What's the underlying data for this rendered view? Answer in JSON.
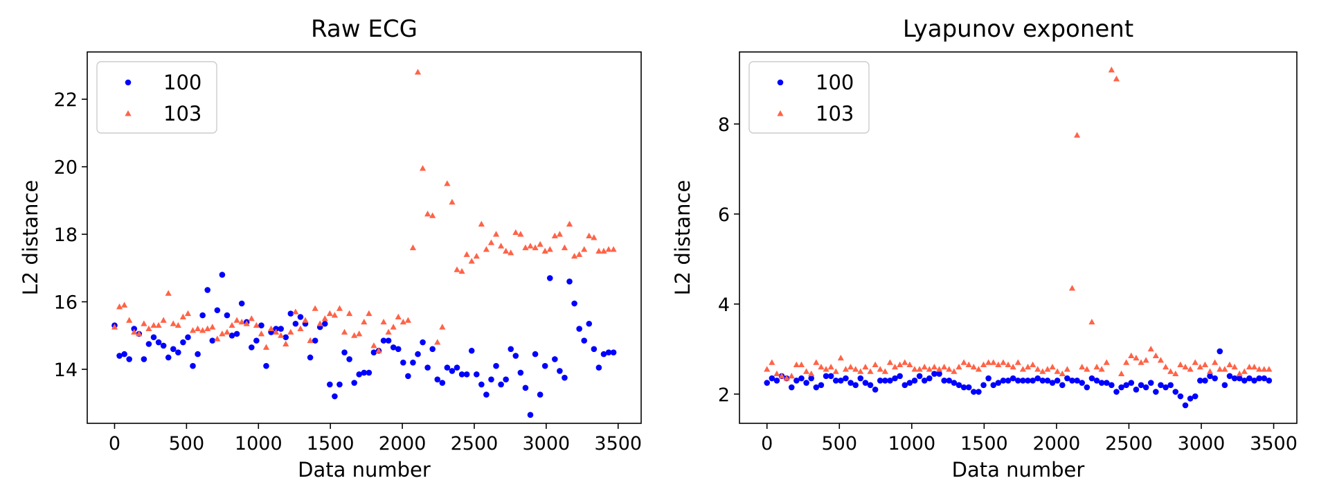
{
  "chart_data": [
    {
      "type": "scatter",
      "title": "Raw ECG",
      "xlabel": "Data number",
      "ylabel": "L2 distance",
      "xlim": [
        -190,
        3660
      ],
      "ylim": [
        12.4,
        23.4
      ],
      "xticks": [
        0,
        500,
        1000,
        1500,
        2000,
        2500,
        3000,
        3500
      ],
      "yticks": [
        14,
        16,
        18,
        20,
        22
      ],
      "grid": false,
      "legend_position": "top-left",
      "series": [
        {
          "name": "100",
          "marker": "circle",
          "color": "#0000ff",
          "x": [
            0,
            34,
            68,
            102,
            136,
            170,
            204,
            238,
            272,
            306,
            340,
            374,
            408,
            442,
            476,
            510,
            544,
            578,
            612,
            646,
            680,
            714,
            748,
            782,
            816,
            850,
            884,
            918,
            952,
            986,
            1020,
            1054,
            1088,
            1122,
            1156,
            1190,
            1224,
            1258,
            1292,
            1326,
            1360,
            1394,
            1428,
            1462,
            1496,
            1530,
            1564,
            1598,
            1632,
            1666,
            1700,
            1734,
            1768,
            1802,
            1836,
            1870,
            1904,
            1938,
            1972,
            2006,
            2040,
            2074,
            2108,
            2142,
            2176,
            2210,
            2244,
            2278,
            2312,
            2346,
            2380,
            2414,
            2448,
            2482,
            2516,
            2550,
            2584,
            2618,
            2652,
            2686,
            2720,
            2754,
            2788,
            2822,
            2856,
            2890,
            2924,
            2958,
            2992,
            3026,
            3060,
            3094,
            3128,
            3162,
            3196,
            3230,
            3264,
            3298,
            3332,
            3366,
            3400,
            3434,
            3468
          ],
          "y": [
            15.3,
            14.4,
            14.45,
            14.3,
            15.2,
            15.05,
            14.3,
            14.75,
            14.95,
            14.8,
            14.7,
            14.35,
            14.6,
            14.5,
            14.8,
            14.95,
            14.1,
            14.45,
            15.6,
            16.35,
            14.85,
            15.75,
            16.8,
            15.6,
            15.0,
            15.05,
            15.95,
            15.4,
            14.65,
            14.85,
            15.3,
            14.1,
            15.1,
            15.2,
            15.2,
            14.95,
            15.65,
            15.35,
            15.55,
            15.35,
            14.35,
            14.85,
            15.25,
            15.35,
            13.55,
            13.2,
            13.55,
            14.5,
            14.3,
            13.6,
            13.85,
            13.9,
            13.9,
            14.5,
            14.55,
            14.85,
            14.85,
            14.65,
            14.6,
            14.2,
            13.8,
            14.2,
            14.45,
            14.8,
            14.05,
            14.6,
            13.7,
            13.6,
            14.05,
            13.95,
            14.05,
            13.85,
            13.85,
            14.55,
            13.85,
            13.55,
            13.25,
            13.7,
            14.1,
            13.55,
            13.7,
            14.6,
            14.4,
            13.9,
            13.45,
            12.65,
            14.45,
            13.25,
            14.1,
            16.7,
            14.3,
            13.95,
            13.75,
            16.6,
            15.95,
            15.2,
            14.85,
            15.35,
            14.6,
            14.05,
            14.45,
            14.5,
            14.5
          ]
        },
        {
          "name": "103",
          "marker": "triangle",
          "color": "#ff6347",
          "x": [
            0,
            34,
            68,
            102,
            136,
            170,
            204,
            238,
            272,
            306,
            340,
            374,
            408,
            442,
            476,
            510,
            544,
            578,
            612,
            646,
            680,
            714,
            748,
            782,
            816,
            850,
            884,
            918,
            952,
            986,
            1020,
            1054,
            1088,
            1122,
            1156,
            1190,
            1224,
            1258,
            1292,
            1326,
            1360,
            1394,
            1428,
            1462,
            1496,
            1530,
            1564,
            1598,
            1632,
            1666,
            1700,
            1734,
            1768,
            1802,
            1836,
            1870,
            1904,
            1938,
            1972,
            2006,
            2040,
            2074,
            2108,
            2142,
            2176,
            2210,
            2244,
            2278,
            2312,
            2346,
            2380,
            2414,
            2448,
            2482,
            2516,
            2550,
            2584,
            2618,
            2652,
            2686,
            2720,
            2754,
            2788,
            2822,
            2856,
            2890,
            2924,
            2958,
            2992,
            3026,
            3060,
            3094,
            3128,
            3162,
            3196,
            3230,
            3264,
            3298,
            3332,
            3366,
            3400,
            3434,
            3468
          ],
          "y": [
            15.25,
            15.85,
            15.9,
            15.45,
            15.1,
            15.05,
            15.35,
            15.2,
            15.3,
            15.3,
            15.45,
            16.25,
            15.35,
            15.3,
            15.55,
            15.65,
            15.15,
            15.2,
            15.15,
            15.2,
            15.25,
            14.9,
            15.05,
            15.1,
            15.3,
            15.45,
            15.4,
            15.35,
            15.5,
            15.3,
            15.05,
            14.65,
            15.2,
            15.1,
            15.0,
            14.75,
            15.1,
            15.7,
            15.2,
            15.45,
            14.85,
            15.8,
            15.35,
            15.5,
            15.65,
            15.6,
            15.8,
            15.1,
            15.65,
            15.0,
            15.05,
            15.4,
            15.65,
            14.7,
            14.55,
            15.4,
            15.1,
            15.25,
            15.55,
            15.4,
            15.45,
            17.6,
            22.8,
            19.95,
            18.6,
            18.55,
            14.8,
            15.25,
            19.5,
            18.95,
            16.95,
            16.9,
            17.4,
            17.2,
            17.35,
            18.3,
            17.55,
            17.75,
            18.0,
            17.65,
            17.5,
            17.45,
            18.05,
            18.0,
            17.6,
            17.65,
            17.6,
            17.7,
            17.5,
            17.55,
            17.95,
            18.0,
            17.6,
            18.3,
            17.35,
            17.4,
            17.55,
            17.95,
            17.9,
            17.5,
            17.5,
            17.55,
            17.55
          ]
        }
      ]
    },
    {
      "type": "scatter",
      "title": "Lyapunov exponent",
      "xlabel": "Data number",
      "ylabel": "L2 distance",
      "xlim": [
        -190,
        3660
      ],
      "ylim": [
        1.35,
        9.6
      ],
      "xticks": [
        0,
        500,
        1000,
        1500,
        2000,
        2500,
        3000,
        3500
      ],
      "yticks": [
        2,
        4,
        6,
        8
      ],
      "grid": false,
      "legend_position": "top-left",
      "series": [
        {
          "name": "100",
          "marker": "circle",
          "color": "#0000ff",
          "x": [
            0,
            34,
            68,
            102,
            136,
            170,
            204,
            238,
            272,
            306,
            340,
            374,
            408,
            442,
            476,
            510,
            544,
            578,
            612,
            646,
            680,
            714,
            748,
            782,
            816,
            850,
            884,
            918,
            952,
            986,
            1020,
            1054,
            1088,
            1122,
            1156,
            1190,
            1224,
            1258,
            1292,
            1326,
            1360,
            1394,
            1428,
            1462,
            1496,
            1530,
            1564,
            1598,
            1632,
            1666,
            1700,
            1734,
            1768,
            1802,
            1836,
            1870,
            1904,
            1938,
            1972,
            2006,
            2040,
            2074,
            2108,
            2142,
            2176,
            2210,
            2244,
            2278,
            2312,
            2346,
            2380,
            2414,
            2448,
            2482,
            2516,
            2550,
            2584,
            2618,
            2652,
            2686,
            2720,
            2754,
            2788,
            2822,
            2856,
            2890,
            2924,
            2958,
            2992,
            3026,
            3060,
            3094,
            3128,
            3162,
            3196,
            3230,
            3264,
            3298,
            3332,
            3366,
            3400,
            3434,
            3468
          ],
          "y": [
            2.25,
            2.35,
            2.3,
            2.4,
            2.35,
            2.15,
            2.3,
            2.35,
            2.25,
            2.35,
            2.15,
            2.2,
            2.4,
            2.4,
            2.3,
            2.3,
            2.35,
            2.25,
            2.2,
            2.35,
            2.25,
            2.2,
            2.1,
            2.3,
            2.3,
            2.3,
            2.35,
            2.4,
            2.2,
            2.25,
            2.3,
            2.4,
            2.3,
            2.35,
            2.45,
            2.45,
            2.3,
            2.3,
            2.25,
            2.2,
            2.15,
            2.15,
            2.05,
            2.05,
            2.2,
            2.35,
            2.2,
            2.25,
            2.3,
            2.3,
            2.35,
            2.3,
            2.3,
            2.3,
            2.3,
            2.35,
            2.3,
            2.3,
            2.25,
            2.3,
            2.2,
            2.35,
            2.3,
            2.3,
            2.25,
            2.15,
            2.35,
            2.3,
            2.25,
            2.25,
            2.2,
            2.05,
            2.15,
            2.2,
            2.25,
            2.1,
            2.2,
            2.15,
            2.25,
            2.05,
            2.2,
            2.15,
            2.2,
            2.05,
            1.95,
            1.75,
            1.9,
            1.95,
            2.3,
            2.3,
            2.4,
            2.35,
            2.95,
            2.2,
            2.4,
            2.35,
            2.35,
            2.3,
            2.35,
            2.3,
            2.35,
            2.35,
            2.3
          ]
        },
        {
          "name": "103",
          "marker": "triangle",
          "color": "#ff6347",
          "x": [
            0,
            34,
            68,
            102,
            136,
            170,
            204,
            238,
            272,
            306,
            340,
            374,
            408,
            442,
            476,
            510,
            544,
            578,
            612,
            646,
            680,
            714,
            748,
            782,
            816,
            850,
            884,
            918,
            952,
            986,
            1020,
            1054,
            1088,
            1122,
            1156,
            1190,
            1224,
            1258,
            1292,
            1326,
            1360,
            1394,
            1428,
            1462,
            1496,
            1530,
            1564,
            1598,
            1632,
            1666,
            1700,
            1734,
            1768,
            1802,
            1836,
            1870,
            1904,
            1938,
            1972,
            2006,
            2040,
            2074,
            2108,
            2142,
            2176,
            2210,
            2244,
            2278,
            2312,
            2346,
            2380,
            2414,
            2448,
            2482,
            2516,
            2550,
            2584,
            2618,
            2652,
            2686,
            2720,
            2754,
            2788,
            2822,
            2856,
            2890,
            2924,
            2958,
            2992,
            3026,
            3060,
            3094,
            3128,
            3162,
            3196,
            3230,
            3264,
            3298,
            3332,
            3366,
            3400,
            3434,
            3468
          ],
          "y": [
            2.55,
            2.7,
            2.45,
            2.4,
            2.35,
            2.4,
            2.65,
            2.65,
            2.5,
            2.45,
            2.7,
            2.6,
            2.55,
            2.6,
            2.5,
            2.8,
            2.55,
            2.6,
            2.55,
            2.5,
            2.6,
            2.5,
            2.65,
            2.55,
            2.5,
            2.7,
            2.6,
            2.65,
            2.7,
            2.65,
            2.55,
            2.55,
            2.6,
            2.55,
            2.6,
            2.55,
            2.6,
            2.55,
            2.5,
            2.6,
            2.7,
            2.65,
            2.6,
            2.55,
            2.65,
            2.7,
            2.7,
            2.65,
            2.7,
            2.65,
            2.6,
            2.7,
            2.55,
            2.6,
            2.65,
            2.55,
            2.5,
            2.55,
            2.6,
            2.5,
            2.45,
            2.55,
            4.35,
            7.75,
            2.6,
            2.55,
            3.6,
            2.6,
            2.55,
            2.7,
            9.2,
            9.0,
            2.45,
            2.7,
            2.85,
            2.8,
            2.7,
            2.75,
            3.0,
            2.85,
            2.75,
            2.6,
            2.5,
            2.45,
            2.65,
            2.6,
            2.55,
            2.7,
            2.6,
            2.65,
            2.5,
            2.7,
            2.55,
            2.55,
            2.65,
            2.6,
            2.45,
            2.5,
            2.6,
            2.6,
            2.55,
            2.55,
            2.55
          ]
        }
      ]
    }
  ]
}
